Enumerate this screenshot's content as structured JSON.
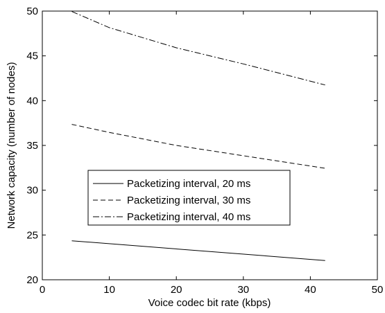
{
  "chart_data": {
    "type": "line",
    "title": "",
    "xlabel": "Voice codec bit rate (kbps)",
    "ylabel": "Network capacity (number of nodes)",
    "xlim": [
      0,
      50
    ],
    "ylim": [
      20,
      50
    ],
    "xticks": [
      0,
      10,
      20,
      30,
      40,
      50
    ],
    "yticks": [
      20,
      25,
      30,
      35,
      40,
      45,
      50
    ],
    "grid": false,
    "legend_position": "center-left",
    "series": [
      {
        "name": "Packetizing interval, 20 ms",
        "style": "solid",
        "x": [
          4.4,
          42.2
        ],
        "y": [
          24.35,
          22.15
        ]
      },
      {
        "name": "Packetizing interval, 30 ms",
        "style": "dashed",
        "x": [
          4.4,
          10,
          20,
          30,
          42.2
        ],
        "y": [
          37.35,
          36.45,
          35.0,
          33.85,
          32.45
        ]
      },
      {
        "name": "Packetizing interval, 40 ms",
        "style": "dashdot",
        "x": [
          4.4,
          10,
          20,
          30,
          42.2
        ],
        "y": [
          49.95,
          48.15,
          45.9,
          44.1,
          41.75
        ]
      }
    ]
  }
}
